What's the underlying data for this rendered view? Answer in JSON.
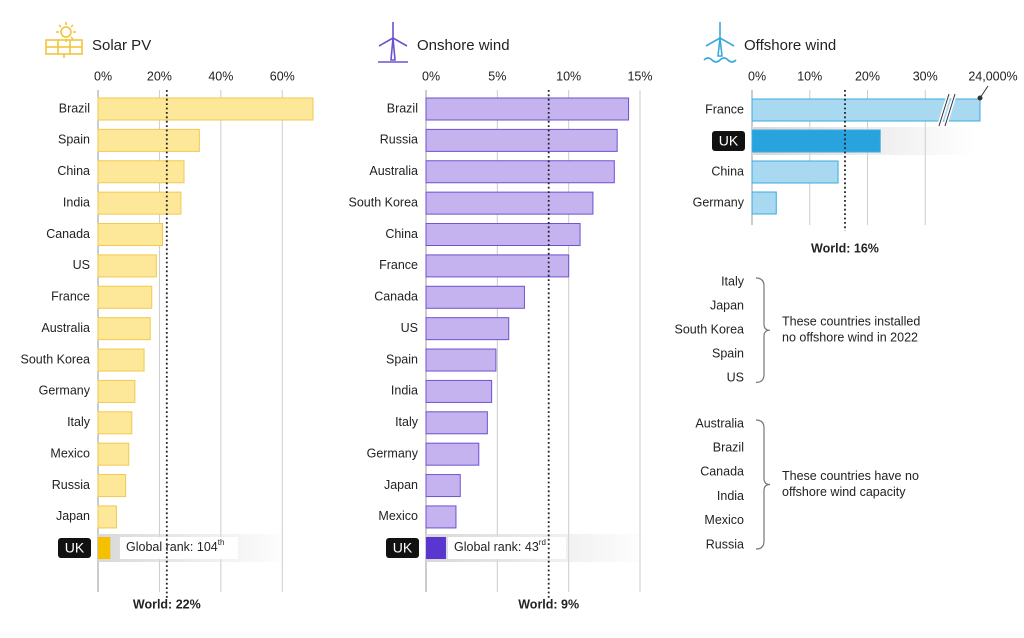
{
  "chart_data": [
    {
      "type": "bar",
      "title": "Solar PV",
      "categories": [
        "Brazil",
        "Spain",
        "China",
        "India",
        "Canada",
        "US",
        "France",
        "Australia",
        "South Korea",
        "Germany",
        "Italy",
        "Mexico",
        "Russia",
        "Japan"
      ],
      "values": [
        70,
        33,
        28,
        27,
        21,
        19,
        17.5,
        17,
        15,
        12,
        11,
        10,
        9,
        6
      ],
      "color": "#fde89a",
      "edge_color": "#f2c94c",
      "xlim": [
        0,
        70
      ],
      "xticks": [
        {
          "value": 0,
          "label": "0%"
        },
        {
          "value": 20,
          "label": "20%"
        },
        {
          "value": 40,
          "label": "40%"
        },
        {
          "value": 60,
          "label": "60%"
        }
      ],
      "grid": true,
      "reference": {
        "value": 22.4,
        "label": "World: 22%"
      },
      "uk": {
        "label": "UK",
        "value": 4,
        "color": "#f5c000",
        "rank": "Global rank: 104",
        "rank_suffix": "th"
      }
    },
    {
      "type": "bar",
      "title": "Onshore wind",
      "categories": [
        "Brazil",
        "Russia",
        "Australia",
        "South Korea",
        "China",
        "France",
        "Canada",
        "US",
        "Spain",
        "India",
        "Italy",
        "Germany",
        "Japan",
        "Mexico"
      ],
      "values": [
        14.2,
        13.4,
        13.2,
        11.7,
        10.8,
        10,
        6.9,
        5.8,
        4.9,
        4.6,
        4.3,
        3.7,
        2.4,
        2.1
      ],
      "color": "#c4b3ef",
      "edge_color": "#6d52cf",
      "xlim": [
        0,
        15
      ],
      "xticks": [
        {
          "value": 0,
          "label": "0%"
        },
        {
          "value": 5,
          "label": "5%"
        },
        {
          "value": 10,
          "label": "10%"
        },
        {
          "value": 15,
          "label": "15%"
        }
      ],
      "grid": true,
      "reference": {
        "value": 8.6,
        "label": "World: 9%"
      },
      "uk": {
        "label": "UK",
        "value": 1.4,
        "color": "#5a36d0",
        "rank": "Global rank: 43",
        "rank_suffix": "rd"
      }
    },
    {
      "type": "bar",
      "title": "Offshore wind",
      "categories": [
        "France",
        "UK",
        "China",
        "Germany"
      ],
      "values": [
        24000,
        22.2,
        14.9,
        4.2
      ],
      "value_labels": [
        "24,000%",
        null,
        null,
        null
      ],
      "color": "#a9d9f1",
      "edge_color": "#3ba9dd",
      "highlight": "UK",
      "highlight_color": "#29a3dd",
      "xlim": [
        0,
        40
      ],
      "xticks": [
        {
          "value": 0,
          "label": "0%"
        },
        {
          "value": 10,
          "label": "10%"
        },
        {
          "value": 20,
          "label": "20%"
        },
        {
          "value": 30,
          "label": "30%"
        }
      ],
      "grid": true,
      "reference": {
        "value": 16.1,
        "label": "World: 16%"
      }
    }
  ],
  "notes": [
    {
      "countries": [
        "Italy",
        "Japan",
        "South Korea",
        "Spain",
        "US"
      ],
      "text": [
        "These countries installed",
        "no offshore wind in 2022"
      ]
    },
    {
      "countries": [
        "Australia",
        "Brazil",
        "Canada",
        "India",
        "Mexico",
        "Russia"
      ],
      "text": [
        "These countries have no",
        "offshore wind capacity"
      ]
    }
  ]
}
